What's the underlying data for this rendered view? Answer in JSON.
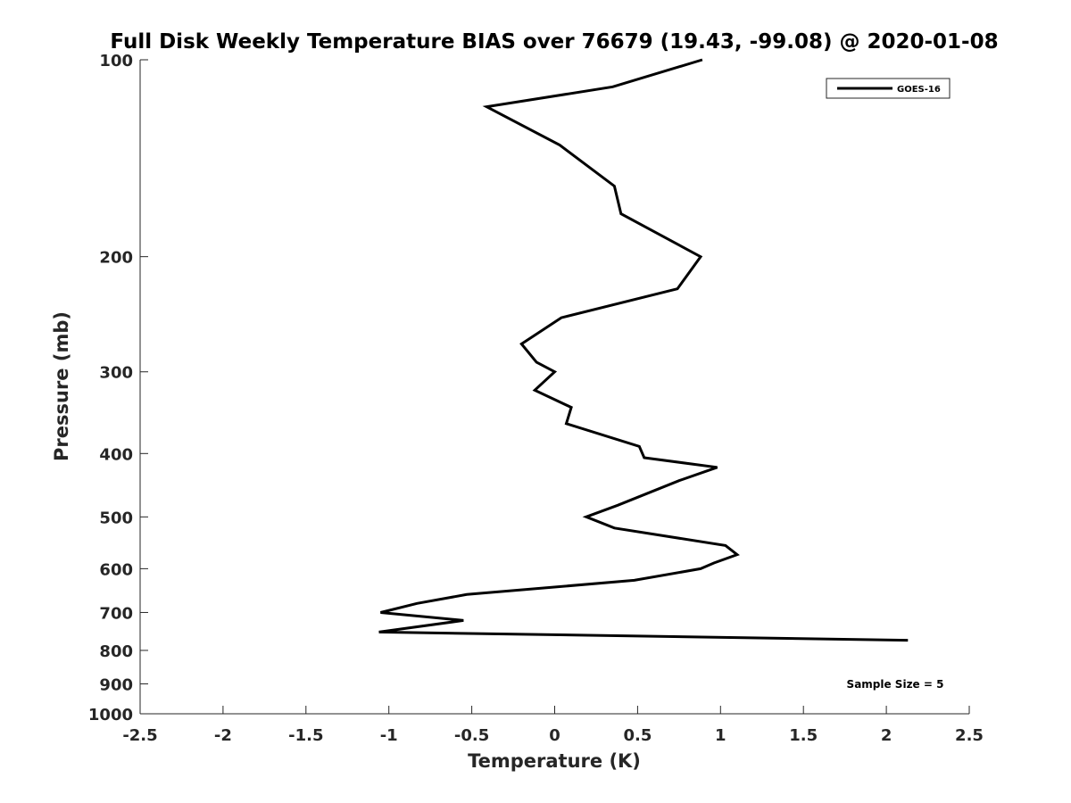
{
  "chart_data": {
    "type": "line",
    "title": "Full Disk Weekly Temperature BIAS over 76679 (19.43, -99.08) @ 2020-01-08",
    "xlabel": "Temperature (K)",
    "ylabel": "Pressure (mb)",
    "xlim": [
      -2.5,
      2.5
    ],
    "ylim": [
      100,
      1000
    ],
    "y_scale": "log",
    "y_reversed": true,
    "x_ticks": [
      -2.5,
      -2,
      -1.5,
      -1,
      -0.5,
      0,
      0.5,
      1,
      1.5,
      2,
      2.5
    ],
    "x_tick_labels": [
      "-2.5",
      "-2",
      "-1.5",
      "-1",
      "-0.5",
      "0",
      "0.5",
      "1",
      "1.5",
      "2",
      "2.5"
    ],
    "y_ticks": [
      100,
      200,
      300,
      400,
      500,
      600,
      700,
      800,
      900,
      1000
    ],
    "y_tick_labels": [
      "100",
      "200",
      "300",
      "400",
      "500",
      "600",
      "700",
      "800",
      "900",
      "1000"
    ],
    "grid": false,
    "legend": "top-right",
    "series": [
      {
        "name": "GOES-16",
        "color": "#000000",
        "x": [
          0.89,
          0.35,
          -0.41,
          0.03,
          0.36,
          0.4,
          0.88,
          0.74,
          0.04,
          -0.2,
          -0.11,
          0.0,
          -0.12,
          0.1,
          0.07,
          0.51,
          0.54,
          0.98,
          0.75,
          0.38,
          0.19,
          0.36,
          1.03,
          1.1,
          0.96,
          0.88,
          0.48,
          -0.53,
          -0.83,
          -1.05,
          -0.55,
          -1.06,
          2.13
        ],
        "y": [
          100,
          110,
          118,
          135,
          156,
          172,
          200,
          224,
          248,
          272,
          290,
          300,
          320,
          340,
          360,
          390,
          406,
          420,
          440,
          480,
          500,
          520,
          553,
          571,
          588,
          600,
          625,
          657,
          678,
          700,
          720,
          750,
          772
        ]
      }
    ],
    "annotations": [
      "Sample Size = 5"
    ]
  }
}
